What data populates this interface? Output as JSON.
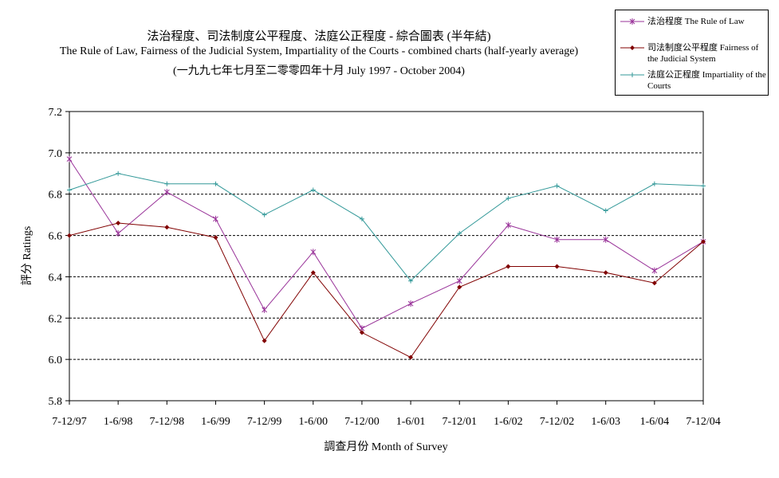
{
  "titles": {
    "line1": "法治程度、司法制度公平程度、法庭公正程度 - 綜合圖表 (半年結)",
    "line2": "The Rule of Law, Fairness of the Judicial System, Impartiality of the Courts - combined charts (half-yearly average)",
    "line3": "(一九九七年七月至二零零四年十月 July 1997 - October 2004)"
  },
  "chart_data": {
    "type": "line",
    "title": "法治程度、司法制度公平程度、法庭公正程度 - 綜合圖表 (半年結)",
    "xlabel": "調查月份 Month of Survey",
    "ylabel": "評分 Ratings",
    "ylim": [
      5.8,
      7.2
    ],
    "yticks": [
      "5.8",
      "6.0",
      "6.2",
      "6.4",
      "6.6",
      "6.8",
      "7.0",
      "7.2"
    ],
    "grid": true,
    "legend_position": "top-right",
    "categories": [
      "7-12/97",
      "1-6/98",
      "7-12/98",
      "1-6/99",
      "7-12/99",
      "1-6/00",
      "7-12/00",
      "1-6/01",
      "7-12/01",
      "1-6/02",
      "7-12/02",
      "1-6/03",
      "1-6/04",
      "7-12/04"
    ],
    "series": [
      {
        "name": "法治程度 The Rule of Law",
        "color": "#993399",
        "marker": "star",
        "values": [
          6.97,
          6.61,
          6.81,
          6.68,
          6.24,
          6.52,
          6.15,
          6.27,
          6.38,
          6.65,
          6.58,
          6.58,
          6.43,
          6.57
        ]
      },
      {
        "name": "司法制度公平程度 Fairness of the Judicial System",
        "color": "#800000",
        "marker": "diamond",
        "values": [
          6.6,
          6.66,
          6.64,
          6.59,
          6.09,
          6.42,
          6.13,
          6.01,
          6.35,
          6.45,
          6.45,
          6.42,
          6.37,
          6.57
        ]
      },
      {
        "name": "法庭公正程度 Impartiality of the Courts",
        "color": "#339999",
        "marker": "plus",
        "values": [
          6.82,
          6.9,
          6.85,
          6.85,
          6.7,
          6.82,
          6.68,
          6.38,
          6.61,
          6.78,
          6.84,
          6.72,
          6.85,
          6.84
        ]
      }
    ]
  }
}
